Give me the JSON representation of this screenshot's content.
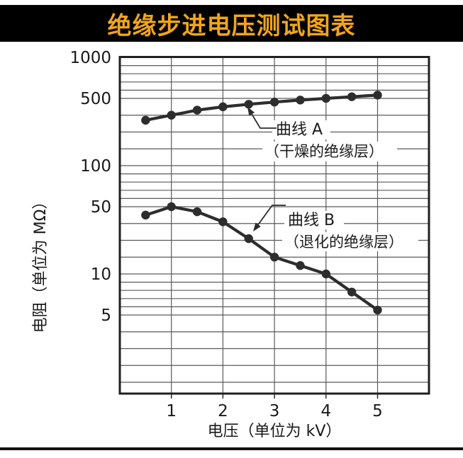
{
  "title_bar": {
    "title": "绝缘步进电压测试图表",
    "background": "#000000",
    "text_color": "#F0A51B"
  },
  "chart_data": {
    "type": "line",
    "title": "绝缘步进电压测试图表",
    "xlabel": "电压（单位为 kV）",
    "ylabel": "电阻（单位为 MΩ）",
    "x_unit": "kV",
    "y_unit": "MΩ",
    "y_scale": "log",
    "xlim": [
      0,
      6
    ],
    "ylim": [
      1,
      1000
    ],
    "grid": true,
    "legend_position": "inline-annotations",
    "x": [
      0.5,
      1,
      1.5,
      2,
      2.5,
      3,
      3.5,
      4,
      4.5,
      5
    ],
    "series": [
      {
        "name": "曲线 A",
        "annotation": "（干燥的绝缘层）",
        "values": [
          370,
          400,
          430,
          450,
          465,
          478,
          490,
          500,
          520,
          540
        ]
      },
      {
        "name": "曲线 B",
        "annotation": "（退化的绝缘层）",
        "values": [
          45,
          50,
          47,
          41,
          31,
          20,
          15,
          10,
          7.8,
          5.6
        ]
      }
    ],
    "x_ticks": [
      1,
      2,
      3,
      4,
      5
    ],
    "y_ticks": [
      1000,
      500,
      100,
      50,
      10,
      5
    ],
    "y_gridlines": [
      900,
      800,
      700,
      600,
      500,
      400,
      300,
      200,
      100,
      90,
      80,
      70,
      60,
      50,
      40,
      30,
      20,
      10,
      9,
      8,
      7,
      6,
      5,
      4,
      3,
      2,
      1
    ],
    "colors": {
      "curve": "#2d2d2d",
      "grid": "#5a5a5a",
      "frame": "#1f1f1f",
      "text": "#1a1a1a"
    }
  }
}
